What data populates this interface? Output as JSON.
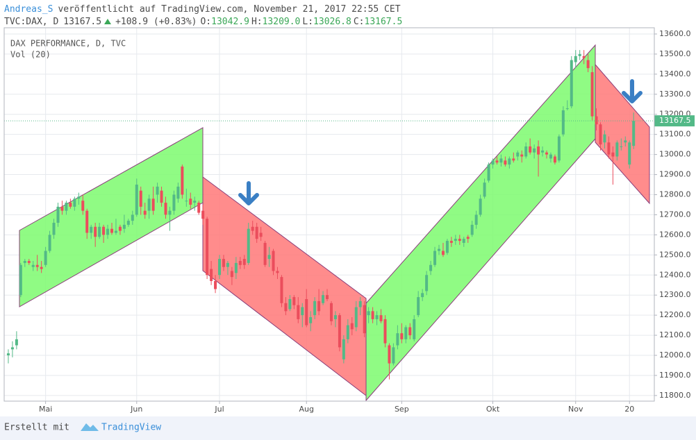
{
  "header": {
    "author": "Andreas_S",
    "published": "veröffentlicht auf TradingView.com, November 21, 2017 22:55 CET",
    "symbol": "TVC:DAX, D",
    "price": "13167.5",
    "change": "+108.9 (+0.83%)",
    "open_label": "O:",
    "open": "13042.9",
    "high_label": "H:",
    "high": "13209.0",
    "low_label": "L:",
    "low": "13026.8",
    "close_label": "C:",
    "close": "13167.5"
  },
  "chart_data": {
    "type": "candlestick",
    "legend": [
      "DAX PERFORMANCE, D, TVC",
      "Vol (20)"
    ],
    "up_color": "#53b987",
    "down_color": "#eb4d5c",
    "grid": true,
    "last_price": 13167.5,
    "last_price_color": "#53b987",
    "xlim": [
      -1,
      156
    ],
    "ylim": [
      11772,
      13631
    ],
    "xticks": [
      {
        "value": 9,
        "label": "Mai"
      },
      {
        "value": 31,
        "label": "Jun"
      },
      {
        "value": 51,
        "label": "Jul"
      },
      {
        "value": 72,
        "label": "Aug"
      },
      {
        "value": 95,
        "label": "Sep"
      },
      {
        "value": 117,
        "label": "Okt"
      },
      {
        "value": 137,
        "label": "Nov"
      },
      {
        "value": 150,
        "label": "20"
      }
    ],
    "yticks": [
      {
        "value": 11800,
        "label": "11800.0"
      },
      {
        "value": 11900,
        "label": "11900.0"
      },
      {
        "value": 12000,
        "label": "12000.0"
      },
      {
        "value": 12100,
        "label": "12100.0"
      },
      {
        "value": 12200,
        "label": "12200.0"
      },
      {
        "value": 12300,
        "label": "12300.0"
      },
      {
        "value": 12400,
        "label": "12400.0"
      },
      {
        "value": 12500,
        "label": "12500.0"
      },
      {
        "value": 12600,
        "label": "12600.0"
      },
      {
        "value": 12700,
        "label": "12700.0"
      },
      {
        "value": 12800,
        "label": "12800.0"
      },
      {
        "value": 12900,
        "label": "12900.0"
      },
      {
        "value": 13000,
        "label": "13000.0"
      },
      {
        "value": 13100,
        "label": "13100.0"
      },
      {
        "value": 13200,
        "label": "13200.0"
      },
      {
        "value": 13300,
        "label": "13300.0"
      },
      {
        "value": 13400,
        "label": "13400.0"
      },
      {
        "value": 13500,
        "label": "13500.0"
      },
      {
        "value": 13600,
        "label": "13600.0"
      }
    ],
    "open": [
      12000,
      12030,
      12050,
      12300,
      12460,
      12470,
      12440,
      12450,
      12440,
      12450,
      12520,
      12600,
      12660,
      12740,
      12720,
      12760,
      12740,
      12780,
      12770,
      12720,
      12610,
      12640,
      12590,
      12640,
      12600,
      12630,
      12610,
      12640,
      12630,
      12650,
      12670,
      12700,
      12820,
      12720,
      12720,
      12780,
      12800,
      12820,
      12760,
      12700,
      12720,
      12780,
      12940,
      12770,
      12780,
      12760,
      12760,
      12720,
      12680,
      12430,
      12370,
      12400,
      12480,
      12440,
      12420,
      12410,
      12470,
      12480,
      12460,
      12640,
      12640,
      12610,
      12560,
      12480,
      12520,
      12420,
      12390,
      12260,
      12230,
      12290,
      12250,
      12200,
      12280,
      12160,
      12200,
      12270,
      12260,
      12300,
      12260,
      12180,
      12200,
      11980,
      12080,
      12160,
      12140,
      12240,
      12250,
      12200,
      12220,
      12180,
      12200,
      12180,
      12050,
      11960,
      12050,
      12110,
      12080,
      12140,
      12080,
      12200,
      12290,
      12320,
      12420,
      12450,
      12520,
      12520,
      12510,
      12570,
      12570,
      12580,
      12560,
      12590,
      12600,
      12650,
      12700,
      12790,
      12870,
      12950,
      12970,
      12960,
      12970,
      12950,
      12980,
      12990,
      13000,
      12990,
      13040,
      13010,
      13040,
      13010,
      13010,
      12980,
      12990,
      12970,
      13100,
      13230,
      13240,
      13460,
      13490,
      13490,
      13470,
      13410,
      13190,
      13150,
      13060,
      13060,
      13010,
      12990,
      13040,
      13060,
      12950,
      13042.9
    ],
    "high": [
      12030,
      12070,
      12120,
      12460,
      12480,
      12480,
      12470,
      12500,
      12470,
      12540,
      12620,
      12680,
      12760,
      12770,
      12770,
      12780,
      12790,
      12810,
      12800,
      12730,
      12650,
      12660,
      12660,
      12650,
      12650,
      12660,
      12680,
      12650,
      12700,
      12680,
      12720,
      12880,
      12840,
      12760,
      12800,
      12840,
      12860,
      12840,
      12790,
      12740,
      12820,
      12860,
      12950,
      12830,
      12810,
      12790,
      12770,
      12750,
      12690,
      12470,
      12400,
      12500,
      12500,
      12470,
      12440,
      12490,
      12490,
      12500,
      12660,
      12670,
      12660,
      12640,
      12570,
      12540,
      12530,
      12440,
      12400,
      12290,
      12300,
      12300,
      12290,
      12260,
      12330,
      12220,
      12290,
      12330,
      12320,
      12330,
      12270,
      12220,
      12210,
      12100,
      12180,
      12190,
      12270,
      12290,
      12270,
      12240,
      12240,
      12220,
      12230,
      12200,
      12060,
      12060,
      12150,
      12160,
      12150,
      12160,
      12200,
      12320,
      12330,
      12420,
      12470,
      12540,
      12550,
      12560,
      12580,
      12590,
      12600,
      12600,
      12590,
      12600,
      12670,
      12720,
      12800,
      12880,
      12960,
      12980,
      12990,
      13000,
      12990,
      12990,
      13010,
      13020,
      13020,
      13060,
      13080,
      13050,
      13070,
      13040,
      13020,
      13010,
      13000,
      13100,
      13240,
      13270,
      13490,
      13520,
      13520,
      13520,
      13500,
      13440,
      13230,
      13160,
      13120,
      13090,
      13040,
      13070,
      13080,
      13090,
      13070,
      13209.0
    ],
    "low": [
      11960,
      11990,
      12030,
      12290,
      12440,
      12450,
      12420,
      12420,
      12410,
      12440,
      12510,
      12580,
      12640,
      12700,
      12700,
      12730,
      12720,
      12750,
      12700,
      12580,
      12580,
      12540,
      12580,
      12560,
      12580,
      12600,
      12600,
      12600,
      12610,
      12640,
      12650,
      12690,
      12700,
      12680,
      12680,
      12700,
      12760,
      12740,
      12680,
      12620,
      12700,
      12760,
      12780,
      12740,
      12730,
      12720,
      12700,
      12650,
      12380,
      12350,
      12310,
      12380,
      12420,
      12400,
      12350,
      12380,
      12430,
      12430,
      12450,
      12600,
      12560,
      12570,
      12440,
      12440,
      12400,
      12380,
      12240,
      12200,
      12220,
      12230,
      12160,
      12140,
      12140,
      12120,
      12180,
      12200,
      12250,
      12270,
      12150,
      12140,
      12020,
      11960,
      12060,
      12100,
      12120,
      12200,
      12090,
      12160,
      12160,
      12150,
      12160,
      12040,
      11880,
      11950,
      12030,
      12060,
      12060,
      12080,
      12070,
      12190,
      12270,
      12300,
      12400,
      12440,
      12500,
      12490,
      12500,
      12540,
      12550,
      12550,
      12540,
      12560,
      12590,
      12630,
      12690,
      12780,
      12860,
      12930,
      12950,
      12940,
      12940,
      12930,
      12960,
      12970,
      12960,
      12980,
      13000,
      12980,
      12890,
      12990,
      12980,
      12960,
      12950,
      12960,
      13090,
      13220,
      13230,
      13430,
      13470,
      13450,
      13410,
      13170,
      13120,
      13020,
      13030,
      12980,
      12850,
      12970,
      13020,
      13040,
      12930,
      13026.8
    ],
    "close": [
      12010,
      12040,
      12080,
      12450,
      12470,
      12460,
      12450,
      12440,
      12430,
      12520,
      12600,
      12660,
      12740,
      12720,
      12760,
      12740,
      12780,
      12790,
      12720,
      12610,
      12640,
      12590,
      12640,
      12600,
      12630,
      12610,
      12620,
      12620,
      12650,
      12670,
      12700,
      12850,
      12740,
      12700,
      12780,
      12720,
      12840,
      12760,
      12700,
      12720,
      12800,
      12840,
      12800,
      12770,
      12750,
      12770,
      12710,
      12680,
      12400,
      12370,
      12330,
      12480,
      12440,
      12460,
      12390,
      12460,
      12450,
      12450,
      12630,
      12620,
      12580,
      12590,
      12450,
      12500,
      12420,
      12410,
      12260,
      12220,
      12280,
      12250,
      12180,
      12240,
      12150,
      12190,
      12270,
      12220,
      12300,
      12280,
      12170,
      12200,
      12040,
      12080,
      12150,
      12130,
      12240,
      12270,
      12110,
      12220,
      12180,
      12200,
      12170,
      12060,
      11960,
      12040,
      12110,
      12080,
      12140,
      12100,
      12180,
      12290,
      12310,
      12400,
      12450,
      12520,
      12530,
      12500,
      12570,
      12560,
      12580,
      12570,
      12580,
      12580,
      12650,
      12700,
      12780,
      12860,
      12950,
      12970,
      12960,
      12980,
      12950,
      12980,
      12970,
      13010,
      12990,
      13040,
      13010,
      13030,
      13000,
      13020,
      13000,
      13000,
      12960,
      13090,
      13220,
      13230,
      13470,
      13490,
      13500,
      13480,
      13430,
      13190,
      13150,
      13050,
      13100,
      13000,
      12990,
      13060,
      13040,
      13070,
      13060,
      13167.5
    ]
  }
}
